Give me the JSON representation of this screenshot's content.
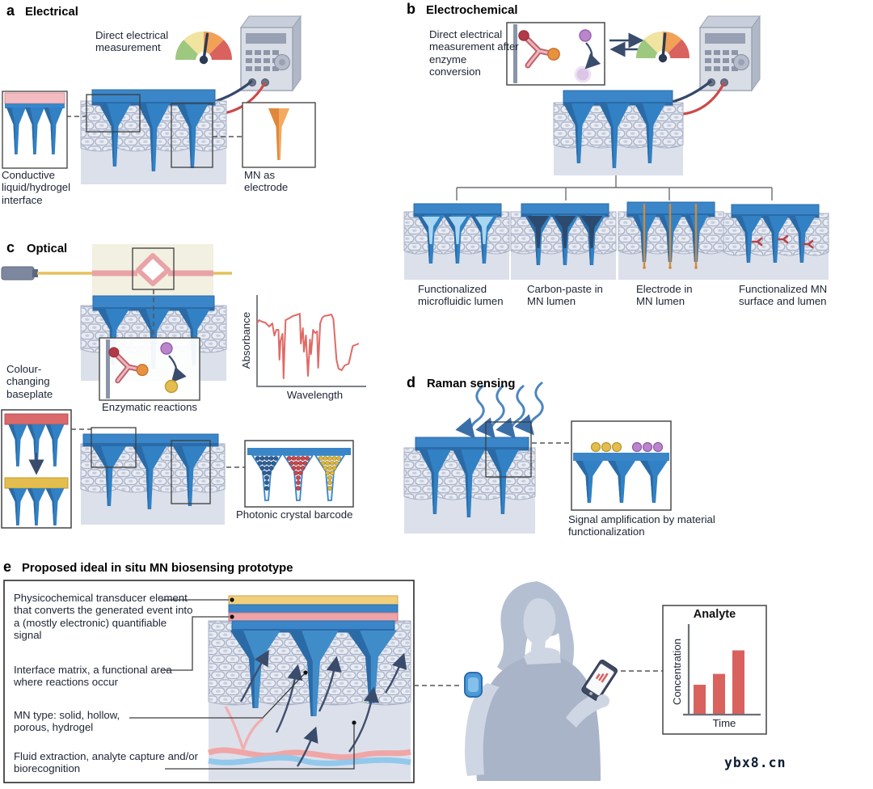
{
  "figure": {
    "watermark": "ybx8.cn"
  },
  "panel_a": {
    "letter": "a",
    "title": "Electrical",
    "annotation": "Direct electrical measurement",
    "label_conductive": "Conductive liquid/hydrogel interface",
    "label_electrode": "MN as electrode"
  },
  "panel_b": {
    "letter": "b",
    "title": "Electrochemical",
    "annotation": "Direct electrical measurement after enzyme conversion",
    "variant_labels": [
      "Functionalized microfluidic lumen",
      "Carbon-paste in MN lumen",
      "Electrode in MN lumen",
      "Functionalized MN surface and lumen"
    ]
  },
  "panel_c": {
    "letter": "c",
    "title": "Optical",
    "label_baseplate": "Colour-changing baseplate",
    "label_enzymatic": "Enzymatic reactions",
    "label_barcode": "Photonic crystal barcode",
    "spectrum_ylabel": "Absorbance",
    "spectrum_xlabel": "Wavelength"
  },
  "panel_d": {
    "letter": "d",
    "title": "Raman sensing",
    "label_amplification": "Signal amplification by material functionalization"
  },
  "panel_e": {
    "letter": "e",
    "title": "Proposed ideal in situ MN biosensing prototype",
    "label_transducer": "Physicochemical transducer element that converts the generated event into a (mostly electronic) quantifiable signal",
    "label_interface": "Interface matrix, a functional area where reactions occur",
    "label_mn_type": "MN type: solid, hollow, porous, hydrogel",
    "label_fluid": "Fluid extraction, analyte capture and/or biorecognition",
    "chart_title": "Analyte",
    "chart_ylabel": "Concentration",
    "chart_xlabel": "Time"
  },
  "chart_data": [
    {
      "type": "line",
      "panel": "c",
      "title": "Absorbance spectrum (schematic, no tick labels)",
      "xlabel": "Wavelength",
      "ylabel": "Absorbance",
      "x": [
        0,
        2,
        5,
        8,
        12,
        15,
        17,
        19,
        21,
        22,
        23,
        25,
        26,
        27,
        28,
        31,
        35,
        40,
        42,
        43,
        45,
        46,
        48,
        49,
        50,
        52,
        53,
        55,
        57,
        59,
        60,
        62,
        64,
        66,
        70,
        73,
        75,
        78,
        80,
        83,
        86,
        90,
        94,
        100
      ],
      "y": [
        70,
        74,
        72,
        71,
        66,
        70,
        55,
        62,
        62,
        25,
        48,
        57,
        2,
        40,
        74,
        76,
        79,
        81,
        82,
        45,
        64,
        35,
        55,
        30,
        5,
        50,
        32,
        62,
        58,
        60,
        15,
        70,
        77,
        79,
        80,
        81,
        75,
        25,
        14,
        12,
        18,
        20,
        42,
        45
      ],
      "line_color": "#e06a66"
    },
    {
      "type": "bar",
      "panel": "e",
      "title": "Analyte",
      "xlabel": "Time",
      "ylabel": "Concentration",
      "values": [
        33,
        45,
        71
      ],
      "value_units": "relative bar height (percent of axis, schematic)",
      "bar_color": "#d9625e"
    }
  ],
  "icons": {
    "gauge": "analog-meter-gauge",
    "device": "benchtop-measurement-box",
    "antibody": "antibody-enzyme-conversion",
    "laser": "laser-fiber-source",
    "person": "woman-silhouette",
    "patch": "wearable-arm-biosensor-patch",
    "phone": "smartphone-with-readout"
  },
  "colors": {
    "mn_blue": "#3a86c8",
    "mn_blue_main": "#3181c4",
    "mn_blue_dark": "#2a6aa6",
    "skin_cell": "#e9ecf3",
    "skin_deep": "#dce0eb",
    "gauge_green": "#9ec77f",
    "gauge_yellow": "#f1e3a0",
    "gauge_orange": "#f2a157",
    "gauge_red": "#d9625e",
    "wire_navy": "#35486a",
    "wire_red": "#cc4a4a",
    "electrode_orange": "#d08a3c",
    "antibody_pink": "#c2606c",
    "accent_purple": "#bb85cc",
    "accent_yellow": "#e3bd4e",
    "vessel_pink": "#f0a6a6",
    "vessel_blue": "#92c8ec"
  }
}
